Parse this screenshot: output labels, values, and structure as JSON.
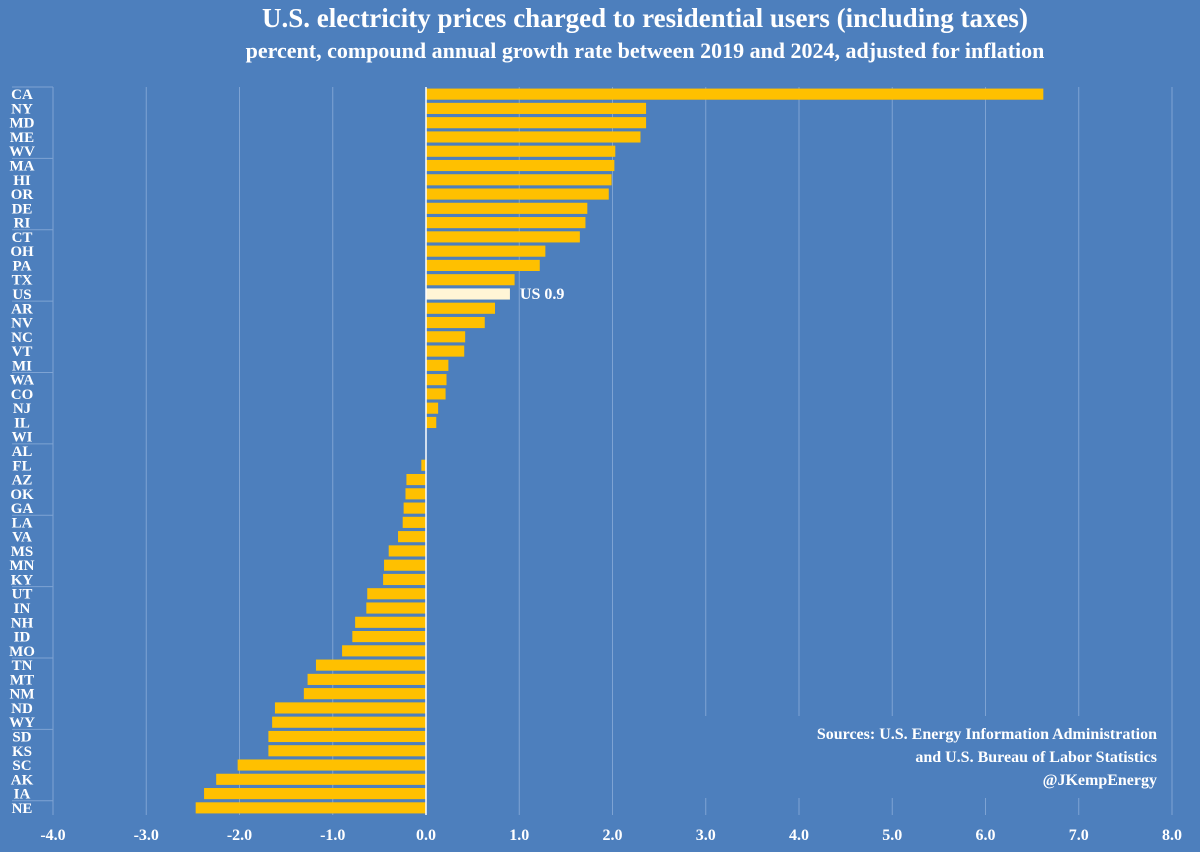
{
  "chart_data": {
    "type": "bar",
    "orientation": "horizontal",
    "title": "U.S. electricity prices charged to residential users (including taxes)",
    "subtitle": "percent, compound annual growth rate between 2019 and 2024, adjusted for inflation",
    "xlim": [
      -4.0,
      8.0
    ],
    "xticks": [
      -4.0,
      -3.0,
      -2.0,
      -1.0,
      0.0,
      1.0,
      2.0,
      3.0,
      4.0,
      5.0,
      6.0,
      7.0,
      8.0
    ],
    "xtick_labels": [
      "-4.0",
      "-3.0",
      "-2.0",
      "-1.0",
      "0.0",
      "1.0",
      "2.0",
      "3.0",
      "4.0",
      "5.0",
      "6.0",
      "7.0",
      "8.0"
    ],
    "categories": [
      "CA",
      "NY",
      "MD",
      "ME",
      "WV",
      "MA",
      "HI",
      "OR",
      "DE",
      "RI",
      "CT",
      "OH",
      "PA",
      "TX",
      "US",
      "AR",
      "NV",
      "NC",
      "VT",
      "MI",
      "WA",
      "CO",
      "NJ",
      "IL",
      "WI",
      "AL",
      "FL",
      "AZ",
      "OK",
      "GA",
      "LA",
      "VA",
      "MS",
      "MN",
      "KY",
      "UT",
      "IN",
      "NH",
      "ID",
      "MO",
      "TN",
      "MT",
      "NM",
      "ND",
      "WY",
      "SD",
      "KS",
      "SC",
      "AK",
      "IA",
      "NE"
    ],
    "values": [
      6.62,
      2.36,
      2.36,
      2.3,
      2.03,
      2.02,
      1.99,
      1.96,
      1.73,
      1.71,
      1.65,
      1.28,
      1.22,
      0.95,
      0.9,
      0.74,
      0.63,
      0.42,
      0.41,
      0.24,
      0.22,
      0.21,
      0.13,
      0.11,
      0.0,
      0.0,
      -0.05,
      -0.21,
      -0.22,
      -0.24,
      -0.25,
      -0.3,
      -0.4,
      -0.45,
      -0.46,
      -0.63,
      -0.64,
      -0.76,
      -0.79,
      -0.9,
      -1.18,
      -1.27,
      -1.31,
      -1.62,
      -1.65,
      -1.69,
      -1.69,
      -2.02,
      -2.25,
      -2.38,
      -2.47
    ],
    "highlight": "US",
    "colors": {
      "bar": "#ffc000",
      "highlight": "#fff5d6",
      "background": "#4d7fbd",
      "grid": "#7ea3d3",
      "text": "#ffffff"
    },
    "annotation": "US 0.9",
    "grid": true
  },
  "sources": {
    "line1": "Sources: U.S. Energy Information Administration",
    "line2": "and U.S. Bureau of Labor Statistics",
    "line3": "@JKempEnergy"
  }
}
